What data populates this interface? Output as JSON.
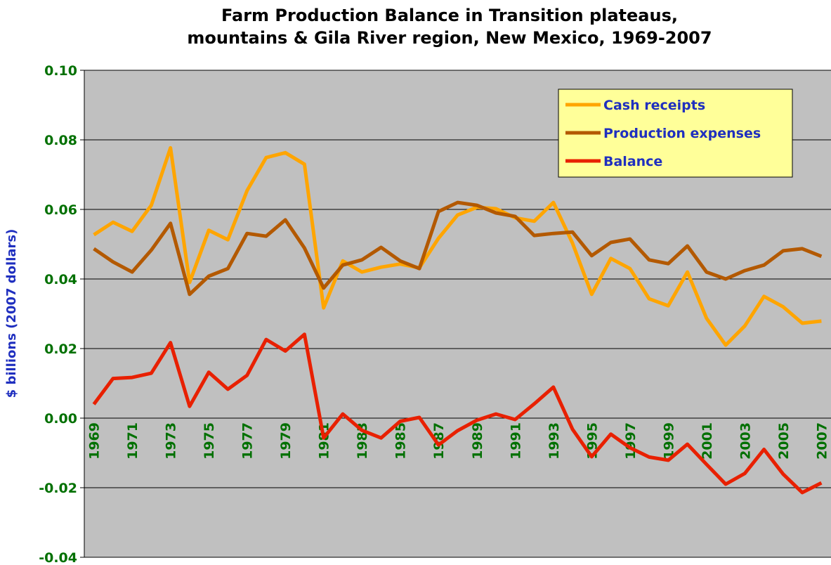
{
  "chart_data": {
    "type": "line",
    "title": [
      "Farm Production Balance in Transition plateaus,",
      "mountains & Gila River region, New Mexico, 1969-2007"
    ],
    "y_label": "$ billions (2007 dollars)",
    "categories": [
      "1969",
      null,
      "1971",
      null,
      "1973",
      null,
      "1975",
      null,
      "1977",
      null,
      "1979",
      null,
      "1981",
      null,
      "1983",
      null,
      "1985",
      null,
      "1987",
      null,
      "1989",
      null,
      "1991",
      null,
      "1993",
      null,
      "1995",
      null,
      "1997",
      null,
      "1999",
      null,
      "2001",
      null,
      "2003",
      null,
      "2005",
      null,
      "2007"
    ],
    "series": [
      {
        "name": "Cash receipts",
        "color": "#ffa500",
        "values": [
          0.0527,
          0.0563,
          0.0537,
          0.0612,
          0.0777,
          0.039,
          0.054,
          0.0513,
          0.0654,
          0.0749,
          0.0763,
          0.073,
          0.0317,
          0.0452,
          0.042,
          0.0434,
          0.0443,
          0.0432,
          0.0517,
          0.0584,
          0.0606,
          0.0602,
          0.0576,
          0.0566,
          0.062,
          0.0503,
          0.0356,
          0.0459,
          0.043,
          0.0343,
          0.0323,
          0.042,
          0.0287,
          0.021,
          0.0265,
          0.035,
          0.032,
          0.0273,
          0.0279
        ]
      },
      {
        "name": "Production expenses",
        "color": "#b35900",
        "values": [
          0.0487,
          0.0449,
          0.042,
          0.0483,
          0.056,
          0.0356,
          0.0408,
          0.043,
          0.0531,
          0.0523,
          0.057,
          0.0489,
          0.0374,
          0.044,
          0.0455,
          0.0491,
          0.0452,
          0.043,
          0.0594,
          0.062,
          0.0612,
          0.059,
          0.058,
          0.0525,
          0.0531,
          0.0535,
          0.0467,
          0.0505,
          0.0515,
          0.0455,
          0.0444,
          0.0495,
          0.042,
          0.04,
          0.0424,
          0.044,
          0.0481,
          0.0487,
          0.0465
        ]
      },
      {
        "name": "Balance",
        "color": "#e82000",
        "values": [
          0.004,
          0.0114,
          0.0117,
          0.0129,
          0.0217,
          0.0034,
          0.0132,
          0.0083,
          0.0123,
          0.0226,
          0.0193,
          0.0241,
          -0.0057,
          0.0012,
          -0.0035,
          -0.0057,
          -0.0009,
          0.0002,
          -0.0077,
          -0.0036,
          -0.0006,
          0.0012,
          -0.0004,
          0.0041,
          0.0089,
          -0.0032,
          -0.0111,
          -0.0046,
          -0.0085,
          -0.0112,
          -0.0121,
          -0.0075,
          -0.0133,
          -0.019,
          -0.0159,
          -0.009,
          -0.0161,
          -0.0214,
          -0.0186
        ]
      }
    ],
    "ylim": [
      -0.04,
      0.1
    ],
    "yticks": [
      {
        "value": 0.1,
        "label": "0.10"
      },
      0.08,
      0.06,
      0.04,
      0.02,
      {
        "value": 0,
        "label": "0.00"
      },
      -0.02,
      -0.04
    ],
    "grid": true,
    "legend": "upper right"
  }
}
